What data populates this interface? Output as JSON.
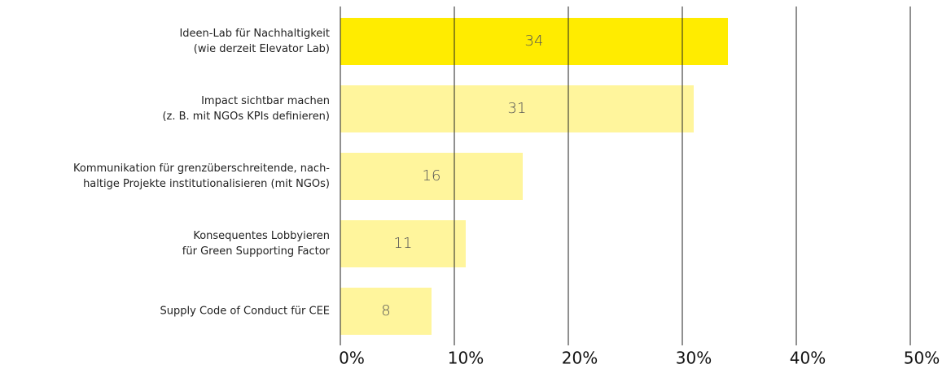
{
  "chart_data": {
    "type": "barh",
    "categories": [
      [
        "Ideen-Lab für Nachhaltigkeit",
        "(wie derzeit Elevator Lab)"
      ],
      [
        "Impact sichtbar machen",
        "(z. B. mit NGOs KPIs definieren)"
      ],
      [
        "Kommunikation für grenzüberschreitende, nach-",
        "haltige Projekte institutionalisieren (mit NGOs)"
      ],
      [
        "Konsequentes Lobbyieren",
        "für Green Supporting Factor"
      ],
      [
        "Supply Code of Conduct für CEE"
      ]
    ],
    "values": [
      34,
      31,
      16,
      11,
      8
    ],
    "colors": [
      "#ffec00",
      "#fff59c",
      "#fff59c",
      "#fff59c",
      "#fff59c"
    ],
    "xlim": [
      0,
      50
    ],
    "xticks": [
      {
        "value": 0,
        "label": "0%"
      },
      {
        "value": 10,
        "label": "10%"
      },
      {
        "value": 20,
        "label": "20%"
      },
      {
        "value": 30,
        "label": "30%"
      },
      {
        "value": 40,
        "label": "40%"
      },
      {
        "value": 50,
        "label": "50%"
      }
    ],
    "grid": true
  }
}
